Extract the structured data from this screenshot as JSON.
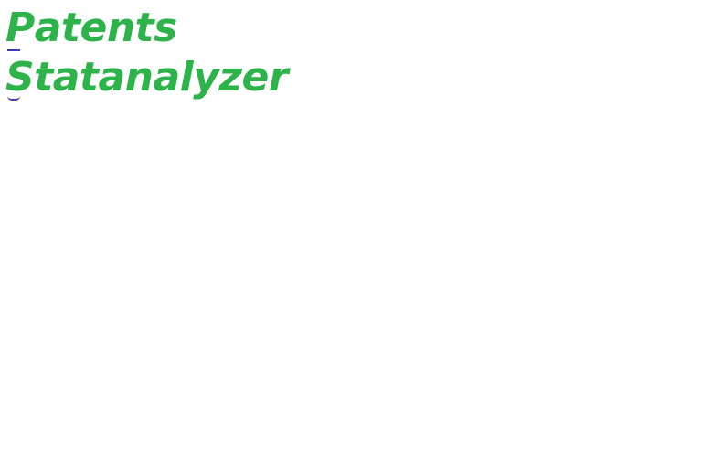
{
  "title": {
    "line1_first": "P",
    "line1_rest": "atents",
    "line2_first": "S",
    "line2_rest": "tatanalyzer"
  },
  "colors": {
    "title_text": "#2db34a",
    "hotkey_underline": "#3b3bb8",
    "background": "#ffffff"
  }
}
